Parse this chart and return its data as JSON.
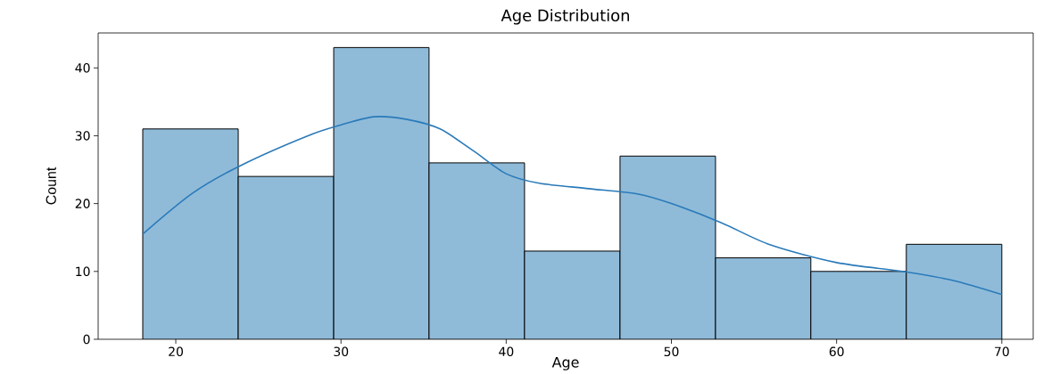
{
  "chart_data": {
    "type": "histogram",
    "title": "Age Distribution",
    "xlabel": "Age",
    "ylabel": "Count",
    "xlim": [
      15.3,
      71.9
    ],
    "ylim": [
      0,
      45.15
    ],
    "xticks": [
      20,
      30,
      40,
      50,
      60,
      70
    ],
    "yticks": [
      0,
      10,
      20,
      30,
      40
    ],
    "color": "#8fbbd9",
    "bins": [
      18,
      23.78,
      29.56,
      35.33,
      41.11,
      46.89,
      52.67,
      58.44,
      64.22,
      70
    ],
    "values": [
      31,
      24,
      43,
      26,
      13,
      27,
      12,
      10,
      14
    ],
    "series": [
      {
        "type": "line",
        "color": "#2a7ab9",
        "x": [
          18,
          21,
          24,
          28,
          30,
          32,
          34,
          36,
          38,
          40,
          42,
          45,
          48,
          50,
          53,
          56,
          60,
          64,
          67,
          70
        ],
        "values": [
          15.5,
          21.5,
          25.7,
          30,
          31.6,
          32.8,
          32.4,
          31,
          27.8,
          24.4,
          23,
          22.2,
          21.4,
          20,
          17.2,
          13.9,
          11.3,
          10,
          8.7,
          6.6
        ]
      }
    ]
  }
}
